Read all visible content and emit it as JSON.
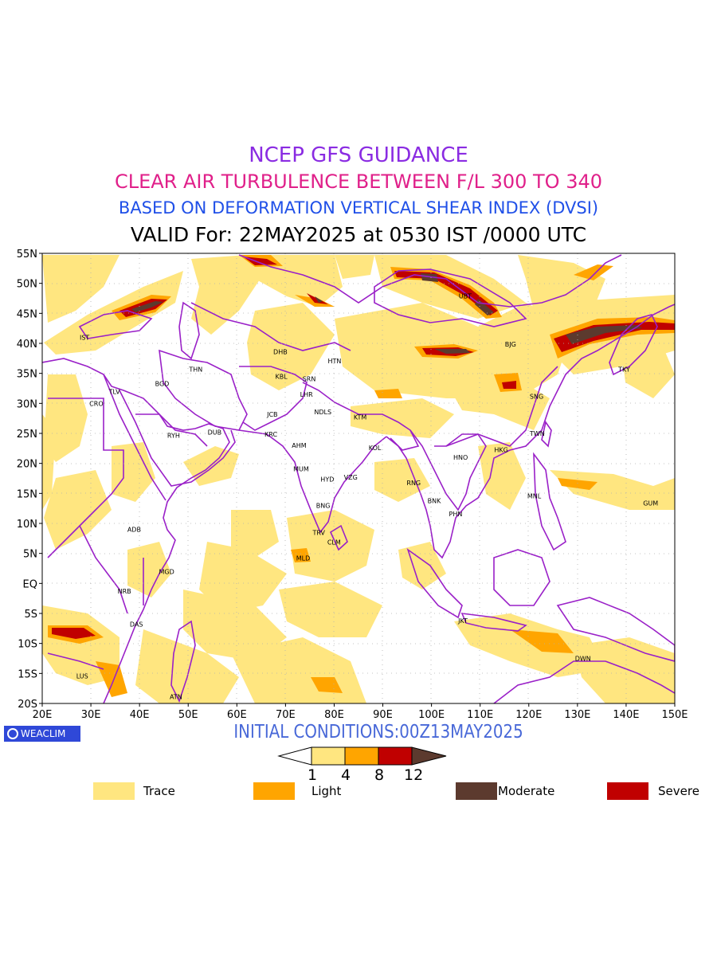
{
  "titles": {
    "line1": "NCEP GFS GUIDANCE",
    "line2": "CLEAR AIR TURBULENCE BETWEEN F/L 300 TO 340",
    "line3": "BASED ON DEFORMATION VERTICAL SHEAR INDEX (DVSI)",
    "line4": "VALID For: 22MAY2025 at 0530 IST /0000 UTC"
  },
  "colors": {
    "line1": "#8a2be2",
    "line2": "#e0208a",
    "line3": "#2050e8",
    "boundary": "#9a20c8",
    "trace": "#ffe680",
    "light": "#ffa500",
    "severe": "#c00000",
    "moderate": "#5c3a2e"
  },
  "map": {
    "lon_range": [
      20,
      150
    ],
    "lat_range": [
      -20,
      55
    ],
    "lat_ticks": [
      "55N",
      "50N",
      "45N",
      "40N",
      "35N",
      "30N",
      "25N",
      "20N",
      "15N",
      "10N",
      "5N",
      "EQ",
      "5S",
      "10S",
      "15S",
      "20S"
    ],
    "lon_ticks": [
      "20E",
      "30E",
      "40E",
      "50E",
      "60E",
      "70E",
      "80E",
      "90E",
      "100E",
      "110E",
      "120E",
      "130E",
      "140E",
      "150E"
    ],
    "stations": [
      {
        "code": "IST",
        "lon": 29,
        "lat": 41
      },
      {
        "code": "TLV",
        "lon": 35,
        "lat": 32
      },
      {
        "code": "CRO",
        "lon": 31,
        "lat": 30
      },
      {
        "code": "BGD",
        "lon": 44.5,
        "lat": 33.3
      },
      {
        "code": "THN",
        "lon": 51.5,
        "lat": 35.7
      },
      {
        "code": "RYH",
        "lon": 47,
        "lat": 24.7
      },
      {
        "code": "DUB",
        "lon": 55.3,
        "lat": 25.2
      },
      {
        "code": "DHB",
        "lon": 68.8,
        "lat": 38.6
      },
      {
        "code": "KBL",
        "lon": 69.2,
        "lat": 34.5
      },
      {
        "code": "SRN",
        "lon": 74.8,
        "lat": 34.1
      },
      {
        "code": "HTN",
        "lon": 80,
        "lat": 37.1
      },
      {
        "code": "LHR",
        "lon": 74.3,
        "lat": 31.5
      },
      {
        "code": "JCB",
        "lon": 67.5,
        "lat": 28.2
      },
      {
        "code": "NDLS",
        "lon": 77.2,
        "lat": 28.6
      },
      {
        "code": "KTM",
        "lon": 85.3,
        "lat": 27.7
      },
      {
        "code": "KRC",
        "lon": 67,
        "lat": 24.9
      },
      {
        "code": "AHM",
        "lon": 72.6,
        "lat": 23
      },
      {
        "code": "KOL",
        "lon": 88.4,
        "lat": 22.6
      },
      {
        "code": "MUM",
        "lon": 72.9,
        "lat": 19.1
      },
      {
        "code": "HYD",
        "lon": 78.5,
        "lat": 17.4
      },
      {
        "code": "VZG",
        "lon": 83.3,
        "lat": 17.7
      },
      {
        "code": "BNG",
        "lon": 77.6,
        "lat": 13
      },
      {
        "code": "TRV",
        "lon": 76.9,
        "lat": 8.5
      },
      {
        "code": "CLM",
        "lon": 79.9,
        "lat": 6.9
      },
      {
        "code": "MLD",
        "lon": 73.5,
        "lat": 4.2
      },
      {
        "code": "RNG",
        "lon": 96.2,
        "lat": 16.8
      },
      {
        "code": "BNK",
        "lon": 100.5,
        "lat": 13.8
      },
      {
        "code": "PHN",
        "lon": 104.9,
        "lat": 11.6
      },
      {
        "code": "HNO",
        "lon": 105.8,
        "lat": 21
      },
      {
        "code": "HKG",
        "lon": 114.2,
        "lat": 22.3
      },
      {
        "code": "TWN",
        "lon": 121.5,
        "lat": 25
      },
      {
        "code": "SNG",
        "lon": 121.5,
        "lat": 31.2
      },
      {
        "code": "BJG",
        "lon": 116.4,
        "lat": 39.9
      },
      {
        "code": "UBT",
        "lon": 106.9,
        "lat": 47.9
      },
      {
        "code": "TKY",
        "lon": 139.7,
        "lat": 35.7
      },
      {
        "code": "MNL",
        "lon": 121,
        "lat": 14.6
      },
      {
        "code": "GUM",
        "lon": 144.8,
        "lat": 13.4
      },
      {
        "code": "ADB",
        "lon": 38.8,
        "lat": 9
      },
      {
        "code": "MGD",
        "lon": 45.3,
        "lat": 2
      },
      {
        "code": "NRB",
        "lon": 36.8,
        "lat": -1.3
      },
      {
        "code": "DAS",
        "lon": 39.3,
        "lat": -6.8
      },
      {
        "code": "LUS",
        "lon": 28.3,
        "lat": -15.4
      },
      {
        "code": "ATN",
        "lon": 47.5,
        "lat": -18.9
      },
      {
        "code": "JKT",
        "lon": 106.8,
        "lat": -6.2
      },
      {
        "code": "DWN",
        "lon": 130.8,
        "lat": -12.5
      }
    ]
  },
  "initial_conditions": "INITIAL CONDITIONS:00Z13MAY2025",
  "logo_text": "WEACLIM",
  "colorbar": {
    "ticks": [
      "1",
      "4",
      "8",
      "12"
    ]
  },
  "legend": [
    {
      "label": "Trace",
      "color": "#ffe680"
    },
    {
      "label": "Light",
      "color": "#ffa500"
    },
    {
      "label": "Moderate",
      "color": "#5c3a2e"
    },
    {
      "label": "Severe",
      "color": "#c00000"
    }
  ]
}
